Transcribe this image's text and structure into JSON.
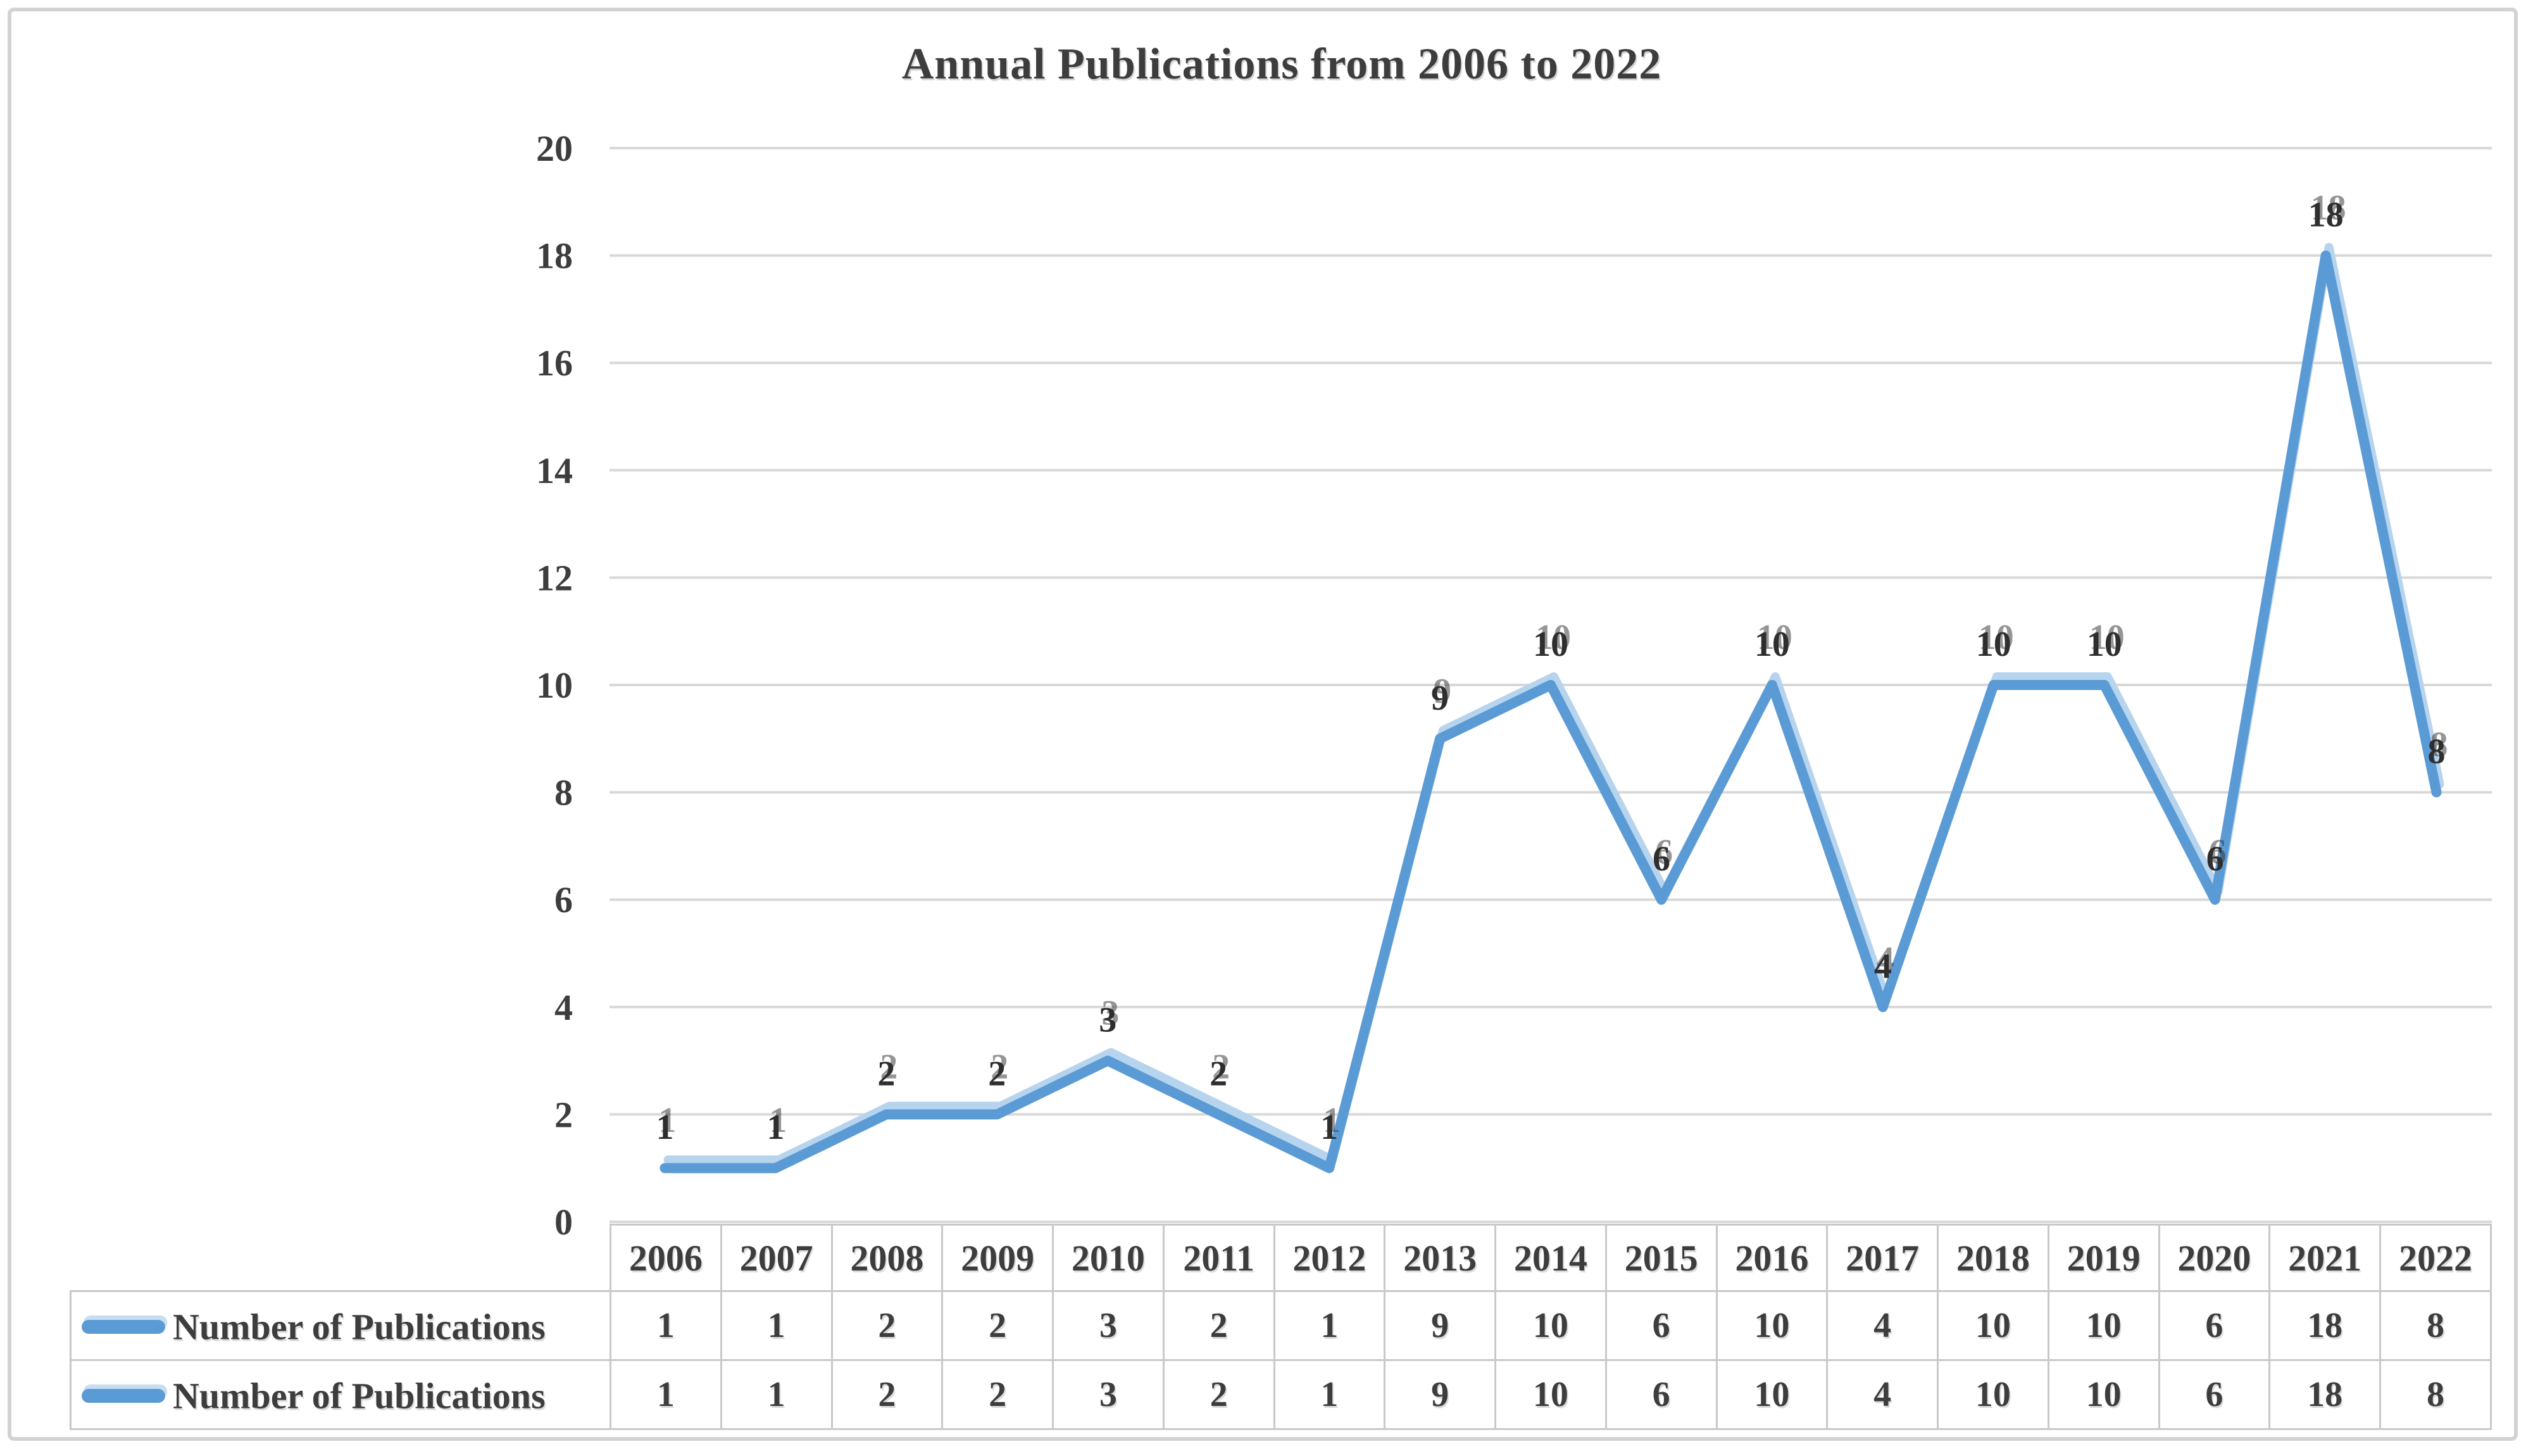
{
  "figure": {
    "title": "Annual Publications from 2006 to 2022"
  },
  "chart_data": {
    "type": "line",
    "title": "Annual Publications from 2006 to 2022",
    "categories": [
      "2006",
      "2007",
      "2008",
      "2009",
      "2010",
      "2011",
      "2012",
      "2013",
      "2014",
      "2015",
      "2016",
      "2017",
      "2018",
      "2019",
      "2020",
      "2021",
      "2022"
    ],
    "series": [
      {
        "name": "Number of Publications",
        "color": "#5B9BD5",
        "values": [
          1,
          1,
          2,
          2,
          3,
          2,
          1,
          9,
          10,
          6,
          10,
          4,
          10,
          10,
          6,
          18,
          8
        ]
      },
      {
        "name": "Number of Publications",
        "color": "#5B9BD5",
        "values": [
          1,
          1,
          2,
          2,
          3,
          2,
          1,
          9,
          10,
          6,
          10,
          4,
          10,
          10,
          6,
          18,
          8
        ]
      }
    ],
    "xlabel": "",
    "ylabel": "",
    "ylim": [
      0,
      20
    ],
    "yticks": [
      0,
      2,
      4,
      6,
      8,
      10,
      12,
      14,
      16,
      18,
      20
    ],
    "grid": true,
    "data_labels": true,
    "legend_position": "table-left",
    "style": {
      "line_color": "#5B9BD5",
      "overlap_halo_color": "#B7D4EE",
      "grid_color": "#d8d8d8",
      "text_color": "#3d3d3d",
      "table_border_color": "#c9c9c9"
    }
  }
}
